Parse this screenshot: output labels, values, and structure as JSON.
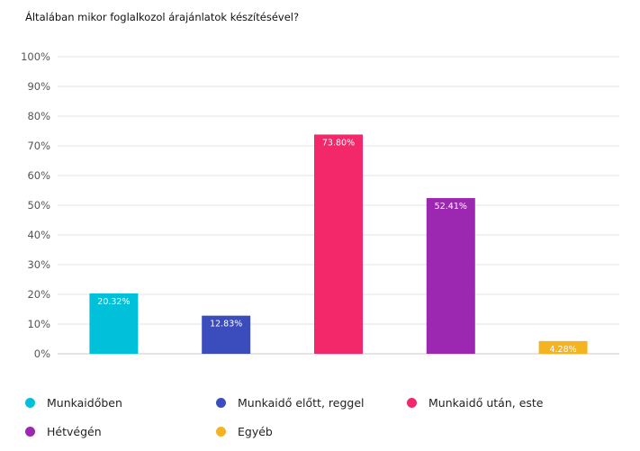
{
  "chart_data": {
    "type": "bar",
    "title": "Általában mikor foglalkozol árajánlatok készítésével?",
    "categories": [
      "Munkaidőben",
      "Munkaidő előtt, reggel",
      "Munkaidő után, este",
      "Hétvégén",
      "Egyéb"
    ],
    "values": [
      20.32,
      12.83,
      73.8,
      52.41,
      4.28
    ],
    "value_labels": [
      "20.32%",
      "12.83%",
      "73.80%",
      "52.41%",
      "4.28%"
    ],
    "colors": [
      "#00c1d9",
      "#3b4dbd",
      "#f2286b",
      "#9c27b0",
      "#f6b320"
    ],
    "ylim": [
      0,
      100
    ],
    "yticks": [
      0,
      10,
      20,
      30,
      40,
      50,
      60,
      70,
      80,
      90,
      100
    ],
    "ytick_labels": [
      "0%",
      "10%",
      "20%",
      "30%",
      "40%",
      "50%",
      "60%",
      "70%",
      "80%",
      "90%",
      "100%"
    ],
    "grid": true,
    "legend_position": "bottom",
    "xlabel": "",
    "ylabel": ""
  }
}
